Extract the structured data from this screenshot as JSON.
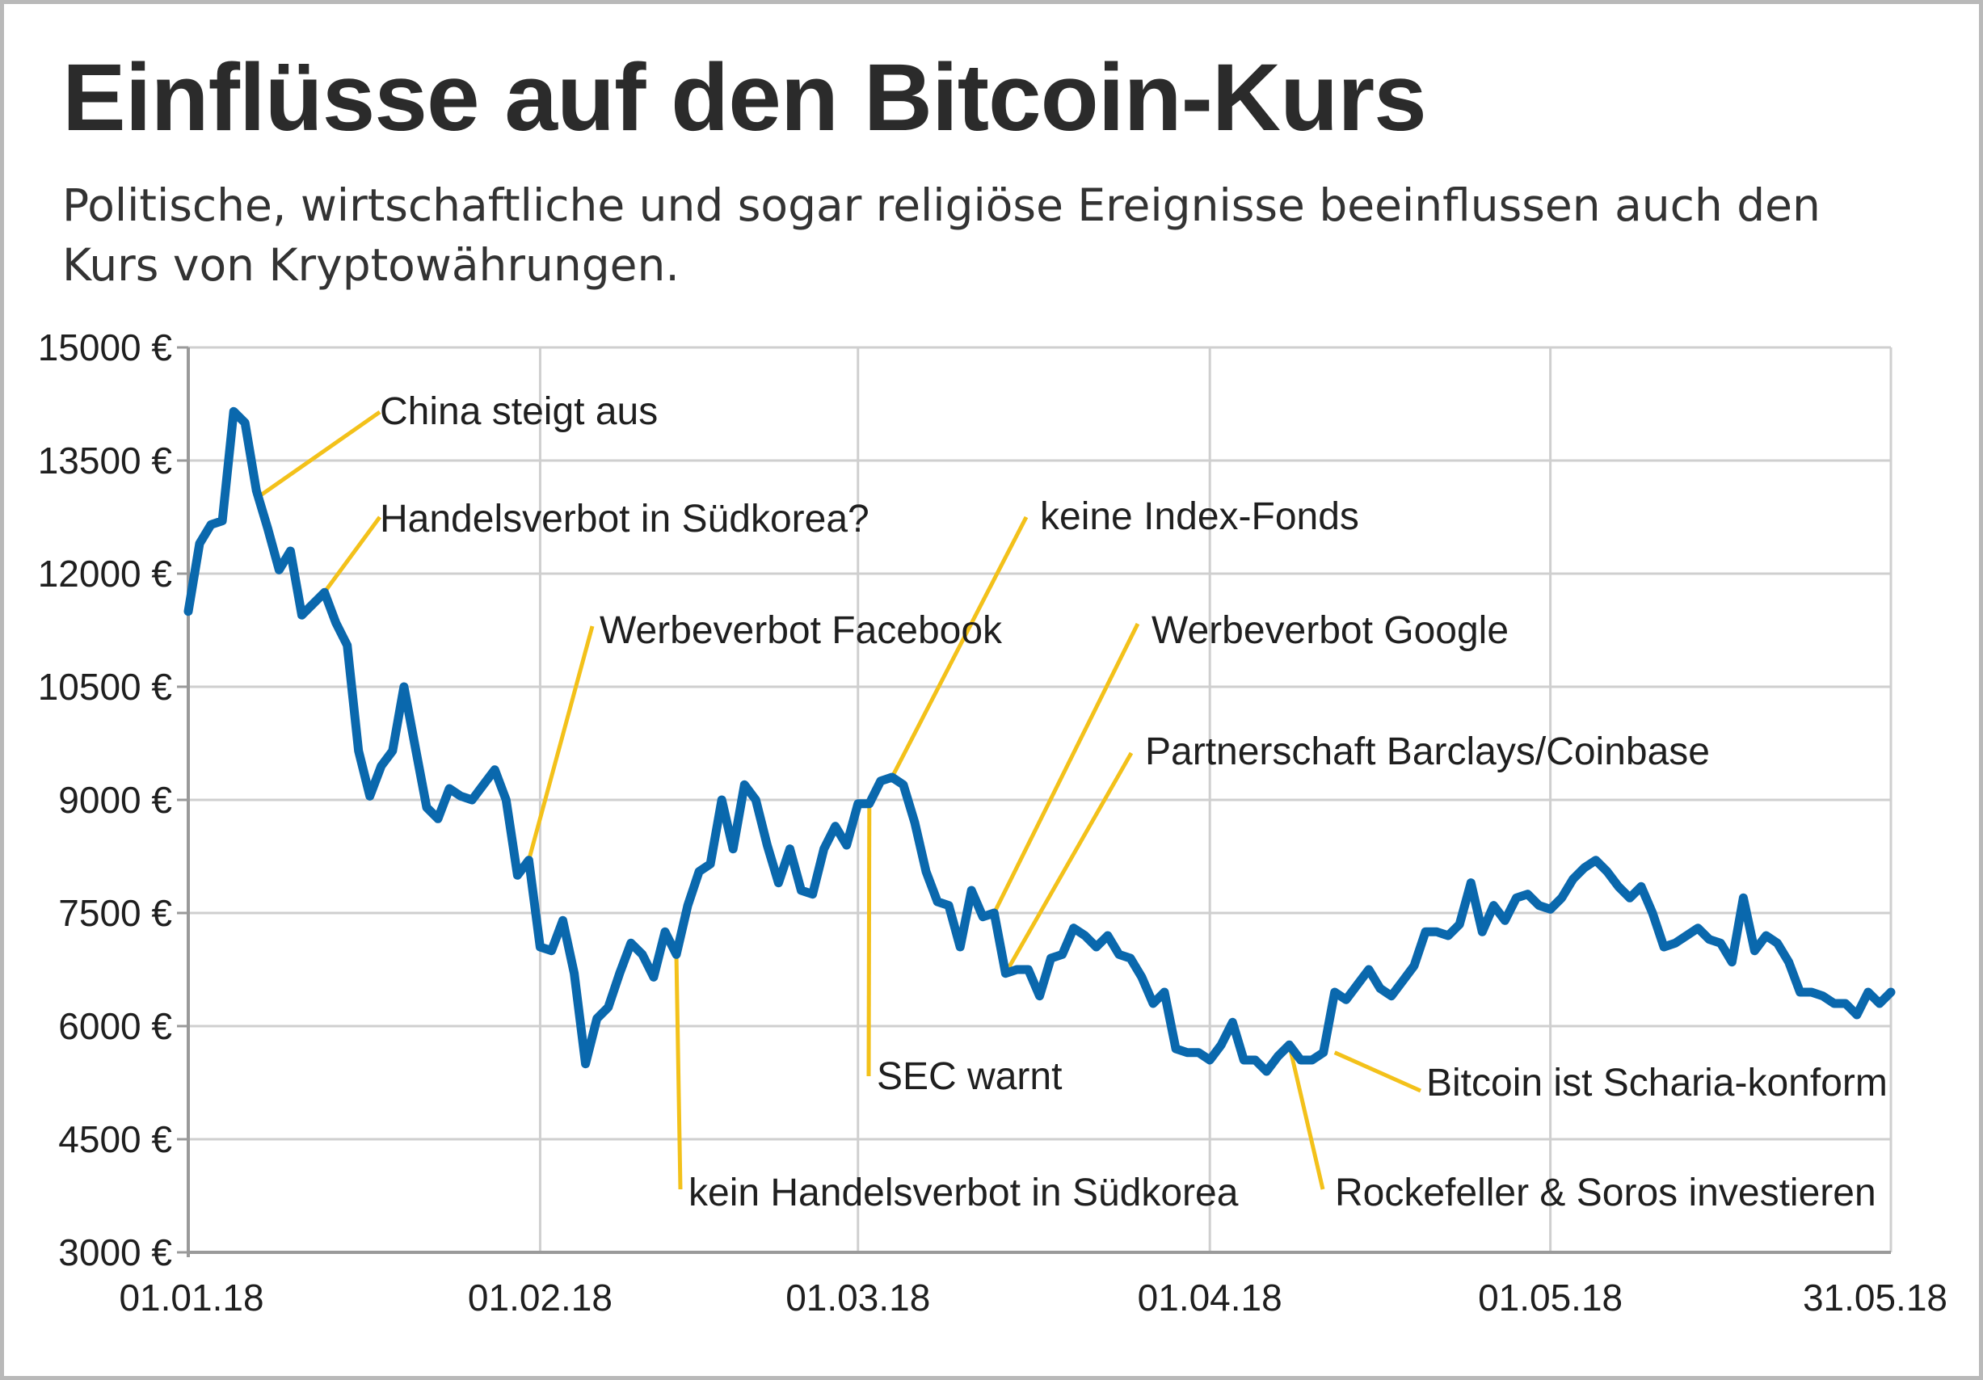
{
  "chart_data": {
    "type": "line",
    "title": "Einflüsse auf den Bitcoin-Kurs",
    "subtitle": "Politische, wirtschaftliche und sogar religiöse Ereignisse beeinflussen auch den Kurs von Kryptowährungen.",
    "xlabel": "",
    "ylabel": "",
    "x_range": [
      "2018-01-01",
      "2018-05-31"
    ],
    "ylim": [
      3000,
      15000
    ],
    "grid": true,
    "legend": "none",
    "colors": {
      "line": "#0a68ad",
      "annotation": "#f3c11a",
      "grid": "#cfcfcf",
      "axis": "#9a9a9a"
    },
    "y_ticks": [
      {
        "value": 15000,
        "label": "15000 €"
      },
      {
        "value": 13500,
        "label": "13500 €"
      },
      {
        "value": 12000,
        "label": "12000 €"
      },
      {
        "value": 10500,
        "label": "10500 €"
      },
      {
        "value": 9000,
        "label": "9000 €"
      },
      {
        "value": 7500,
        "label": "7500 €"
      },
      {
        "value": 6000,
        "label": "6000 €"
      },
      {
        "value": 4500,
        "label": "4500 €"
      },
      {
        "value": 3000,
        "label": "3000 €"
      }
    ],
    "x_ticks": [
      {
        "date": "2018-01-01",
        "label": "01.01.18"
      },
      {
        "date": "2018-02-01",
        "label": "01.02.18"
      },
      {
        "date": "2018-03-01",
        "label": "01.03.18"
      },
      {
        "date": "2018-04-01",
        "label": "01.04.18"
      },
      {
        "date": "2018-05-01",
        "label": "01.05.18"
      },
      {
        "date": "2018-05-31",
        "label": "31.05.18"
      }
    ],
    "series": [
      {
        "values": [
          {
            "x": "2018-01-01",
            "y": 11500
          },
          {
            "x": "2018-01-02",
            "y": 12400
          },
          {
            "x": "2018-01-03",
            "y": 12650
          },
          {
            "x": "2018-01-04",
            "y": 12700
          },
          {
            "x": "2018-01-05",
            "y": 14150
          },
          {
            "x": "2018-01-06",
            "y": 14000
          },
          {
            "x": "2018-01-07",
            "y": 13100
          },
          {
            "x": "2018-01-08",
            "y": 12600
          },
          {
            "x": "2018-01-09",
            "y": 12050
          },
          {
            "x": "2018-01-10",
            "y": 12300
          },
          {
            "x": "2018-01-11",
            "y": 11450
          },
          {
            "x": "2018-01-12",
            "y": 11600
          },
          {
            "x": "2018-01-13",
            "y": 11750
          },
          {
            "x": "2018-01-14",
            "y": 11350
          },
          {
            "x": "2018-01-15",
            "y": 11050
          },
          {
            "x": "2018-01-16",
            "y": 9650
          },
          {
            "x": "2018-01-17",
            "y": 9050
          },
          {
            "x": "2018-01-18",
            "y": 9450
          },
          {
            "x": "2018-01-19",
            "y": 9650
          },
          {
            "x": "2018-01-20",
            "y": 10500
          },
          {
            "x": "2018-01-21",
            "y": 9700
          },
          {
            "x": "2018-01-22",
            "y": 8900
          },
          {
            "x": "2018-01-23",
            "y": 8750
          },
          {
            "x": "2018-01-24",
            "y": 9150
          },
          {
            "x": "2018-01-25",
            "y": 9050
          },
          {
            "x": "2018-01-26",
            "y": 9000
          },
          {
            "x": "2018-01-27",
            "y": 9200
          },
          {
            "x": "2018-01-28",
            "y": 9400
          },
          {
            "x": "2018-01-29",
            "y": 9000
          },
          {
            "x": "2018-01-30",
            "y": 8000
          },
          {
            "x": "2018-01-31",
            "y": 8200
          },
          {
            "x": "2018-02-01",
            "y": 7050
          },
          {
            "x": "2018-02-02",
            "y": 7000
          },
          {
            "x": "2018-02-03",
            "y": 7400
          },
          {
            "x": "2018-02-04",
            "y": 6700
          },
          {
            "x": "2018-02-05",
            "y": 5500
          },
          {
            "x": "2018-02-06",
            "y": 6100
          },
          {
            "x": "2018-02-07",
            "y": 6250
          },
          {
            "x": "2018-02-08",
            "y": 6700
          },
          {
            "x": "2018-02-09",
            "y": 7100
          },
          {
            "x": "2018-02-10",
            "y": 6950
          },
          {
            "x": "2018-02-11",
            "y": 6650
          },
          {
            "x": "2018-02-12",
            "y": 7250
          },
          {
            "x": "2018-02-13",
            "y": 6950
          },
          {
            "x": "2018-02-14",
            "y": 7600
          },
          {
            "x": "2018-02-15",
            "y": 8050
          },
          {
            "x": "2018-02-16",
            "y": 8150
          },
          {
            "x": "2018-02-17",
            "y": 9000
          },
          {
            "x": "2018-02-18",
            "y": 8350
          },
          {
            "x": "2018-02-19",
            "y": 9200
          },
          {
            "x": "2018-02-20",
            "y": 9000
          },
          {
            "x": "2018-02-21",
            "y": 8400
          },
          {
            "x": "2018-02-22",
            "y": 7900
          },
          {
            "x": "2018-02-23",
            "y": 8350
          },
          {
            "x": "2018-02-24",
            "y": 7800
          },
          {
            "x": "2018-02-25",
            "y": 7750
          },
          {
            "x": "2018-02-26",
            "y": 8350
          },
          {
            "x": "2018-02-27",
            "y": 8650
          },
          {
            "x": "2018-02-28",
            "y": 8400
          },
          {
            "x": "2018-03-01",
            "y": 8950
          },
          {
            "x": "2018-03-02",
            "y": 8950
          },
          {
            "x": "2018-03-03",
            "y": 9250
          },
          {
            "x": "2018-03-04",
            "y": 9300
          },
          {
            "x": "2018-03-05",
            "y": 9200
          },
          {
            "x": "2018-03-06",
            "y": 8700
          },
          {
            "x": "2018-03-07",
            "y": 8050
          },
          {
            "x": "2018-03-08",
            "y": 7650
          },
          {
            "x": "2018-03-09",
            "y": 7600
          },
          {
            "x": "2018-03-10",
            "y": 7050
          },
          {
            "x": "2018-03-11",
            "y": 7800
          },
          {
            "x": "2018-03-12",
            "y": 7450
          },
          {
            "x": "2018-03-13",
            "y": 7500
          },
          {
            "x": "2018-03-14",
            "y": 6700
          },
          {
            "x": "2018-03-15",
            "y": 6750
          },
          {
            "x": "2018-03-16",
            "y": 6750
          },
          {
            "x": "2018-03-17",
            "y": 6400
          },
          {
            "x": "2018-03-18",
            "y": 6900
          },
          {
            "x": "2018-03-19",
            "y": 6950
          },
          {
            "x": "2018-03-20",
            "y": 7300
          },
          {
            "x": "2018-03-21",
            "y": 7200
          },
          {
            "x": "2018-03-22",
            "y": 7050
          },
          {
            "x": "2018-03-23",
            "y": 7200
          },
          {
            "x": "2018-03-24",
            "y": 6950
          },
          {
            "x": "2018-03-25",
            "y": 6900
          },
          {
            "x": "2018-03-26",
            "y": 6650
          },
          {
            "x": "2018-03-27",
            "y": 6300
          },
          {
            "x": "2018-03-28",
            "y": 6450
          },
          {
            "x": "2018-03-29",
            "y": 5700
          },
          {
            "x": "2018-03-30",
            "y": 5650
          },
          {
            "x": "2018-03-31",
            "y": 5650
          },
          {
            "x": "2018-04-01",
            "y": 5550
          },
          {
            "x": "2018-04-02",
            "y": 5750
          },
          {
            "x": "2018-04-03",
            "y": 6050
          },
          {
            "x": "2018-04-04",
            "y": 5550
          },
          {
            "x": "2018-04-05",
            "y": 5550
          },
          {
            "x": "2018-04-06",
            "y": 5400
          },
          {
            "x": "2018-04-07",
            "y": 5600
          },
          {
            "x": "2018-04-08",
            "y": 5750
          },
          {
            "x": "2018-04-09",
            "y": 5550
          },
          {
            "x": "2018-04-10",
            "y": 5550
          },
          {
            "x": "2018-04-11",
            "y": 5650
          },
          {
            "x": "2018-04-12",
            "y": 6450
          },
          {
            "x": "2018-04-13",
            "y": 6350
          },
          {
            "x": "2018-04-14",
            "y": 6550
          },
          {
            "x": "2018-04-15",
            "y": 6750
          },
          {
            "x": "2018-04-16",
            "y": 6500
          },
          {
            "x": "2018-04-17",
            "y": 6400
          },
          {
            "x": "2018-04-18",
            "y": 6600
          },
          {
            "x": "2018-04-19",
            "y": 6800
          },
          {
            "x": "2018-04-20",
            "y": 7250
          },
          {
            "x": "2018-04-21",
            "y": 7250
          },
          {
            "x": "2018-04-22",
            "y": 7200
          },
          {
            "x": "2018-04-23",
            "y": 7350
          },
          {
            "x": "2018-04-24",
            "y": 7900
          },
          {
            "x": "2018-04-25",
            "y": 7250
          },
          {
            "x": "2018-04-26",
            "y": 7600
          },
          {
            "x": "2018-04-27",
            "y": 7400
          },
          {
            "x": "2018-04-28",
            "y": 7700
          },
          {
            "x": "2018-04-29",
            "y": 7750
          },
          {
            "x": "2018-04-30",
            "y": 7600
          },
          {
            "x": "2018-05-01",
            "y": 7550
          },
          {
            "x": "2018-05-02",
            "y": 7700
          },
          {
            "x": "2018-05-03",
            "y": 7950
          },
          {
            "x": "2018-05-04",
            "y": 8100
          },
          {
            "x": "2018-05-05",
            "y": 8200
          },
          {
            "x": "2018-05-06",
            "y": 8050
          },
          {
            "x": "2018-05-07",
            "y": 7850
          },
          {
            "x": "2018-05-08",
            "y": 7700
          },
          {
            "x": "2018-05-09",
            "y": 7850
          },
          {
            "x": "2018-05-10",
            "y": 7500
          },
          {
            "x": "2018-05-11",
            "y": 7050
          },
          {
            "x": "2018-05-12",
            "y": 7100
          },
          {
            "x": "2018-05-13",
            "y": 7200
          },
          {
            "x": "2018-05-14",
            "y": 7300
          },
          {
            "x": "2018-05-15",
            "y": 7150
          },
          {
            "x": "2018-05-16",
            "y": 7100
          },
          {
            "x": "2018-05-17",
            "y": 6850
          },
          {
            "x": "2018-05-18",
            "y": 7700
          },
          {
            "x": "2018-05-19",
            "y": 7000
          },
          {
            "x": "2018-05-20",
            "y": 7200
          },
          {
            "x": "2018-05-21",
            "y": 7100
          },
          {
            "x": "2018-05-22",
            "y": 6850
          },
          {
            "x": "2018-05-23",
            "y": 6450
          },
          {
            "x": "2018-05-24",
            "y": 6450
          },
          {
            "x": "2018-05-25",
            "y": 6400
          },
          {
            "x": "2018-05-26",
            "y": 6300
          },
          {
            "x": "2018-05-27",
            "y": 6300
          },
          {
            "x": "2018-05-28",
            "y": 6150
          },
          {
            "x": "2018-05-29",
            "y": 6450
          },
          {
            "x": "2018-05-30",
            "y": 6300
          },
          {
            "x": "2018-05-31",
            "y": 6450
          }
        ]
      }
    ],
    "annotations": [
      {
        "text": "China steigt aus",
        "x": "2018-01-07",
        "y": 13000
      },
      {
        "text": "Handelsverbot in Südkorea?",
        "x": "2018-01-12",
        "y": 11550
      },
      {
        "text": "Werbeverbot Facebook",
        "x": "2018-01-31",
        "y": 8200
      },
      {
        "text": "kein Handelsverbot in Südkorea",
        "x": "2018-02-13",
        "y": 6950
      },
      {
        "text": "SEC warnt",
        "x": "2018-03-02",
        "y": 8950
      },
      {
        "text": "keine Index-Fonds",
        "x": "2018-03-04",
        "y": 9300
      },
      {
        "text": "Werbeverbot Google",
        "x": "2018-03-13",
        "y": 7500
      },
      {
        "text": "Partnerschaft Barclays/Coinbase",
        "x": "2018-03-14",
        "y": 6700
      },
      {
        "text": "Rockefeller & Soros investieren",
        "x": "2018-04-08",
        "y": 5750
      },
      {
        "text": "Bitcoin ist Scharia-konform",
        "x": "2018-04-12",
        "y": 5650
      }
    ]
  }
}
